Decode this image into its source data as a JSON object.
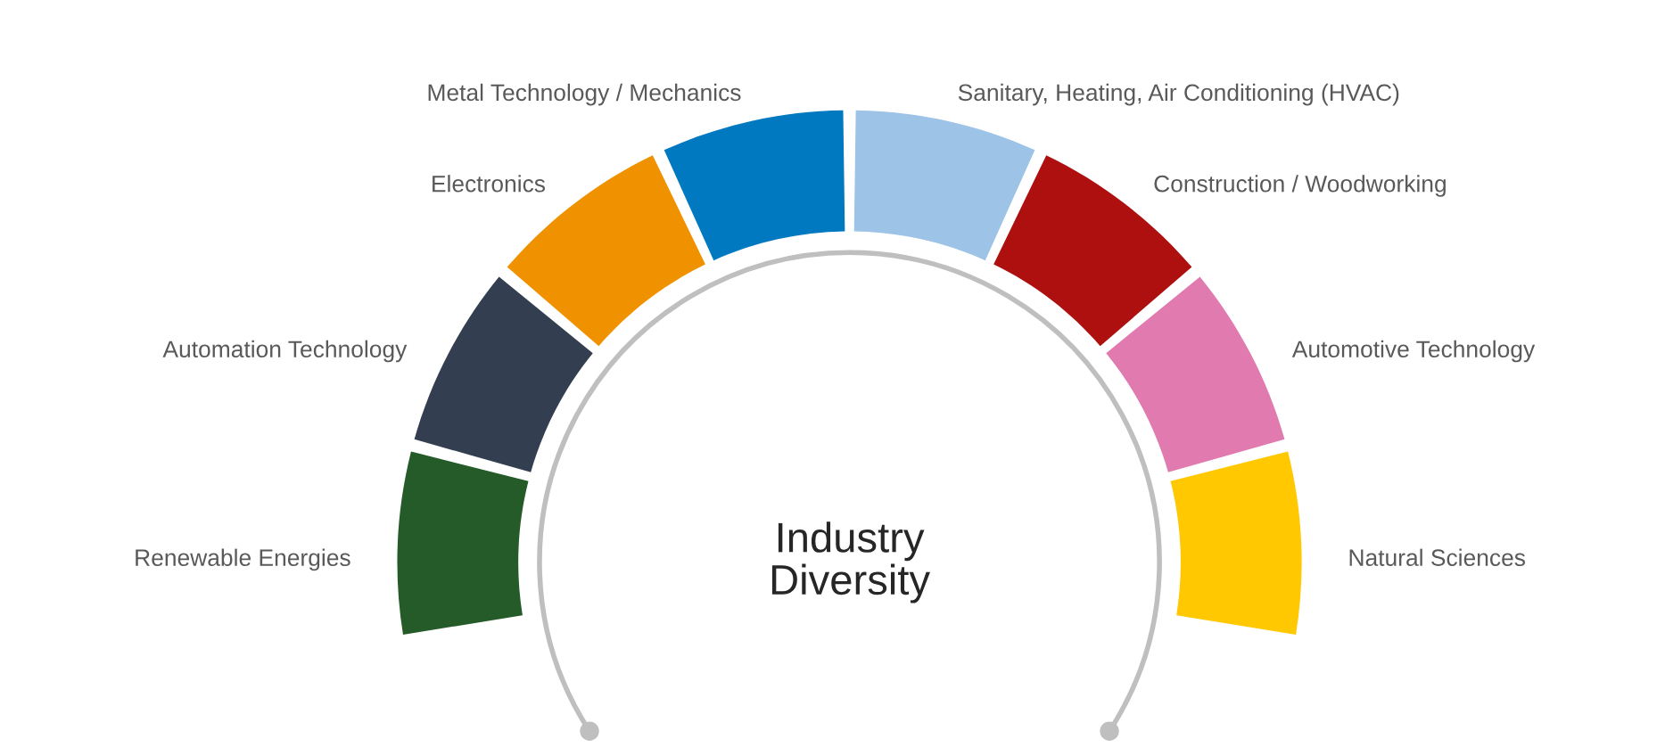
{
  "chart_data": {
    "type": "donut",
    "title": "Industry Diversity",
    "categories": [
      "Renewable Energies",
      "Automation Technology",
      "Electronics",
      "Metal Technology / Mechanics",
      "Sanitary, Heating, Air Conditioning (HVAC)",
      "Construction / Woodworking",
      "Automotive Technology",
      "Natural Sciences"
    ],
    "values": [
      12.5,
      12.5,
      12.5,
      12.5,
      12.5,
      12.5,
      12.5,
      12.5
    ],
    "colors": [
      "#255a29",
      "#333f50",
      "#f09100",
      "#0079c1",
      "#9dc3e6",
      "#ae1010",
      "#e07aaf",
      "#ffc800"
    ]
  }
}
